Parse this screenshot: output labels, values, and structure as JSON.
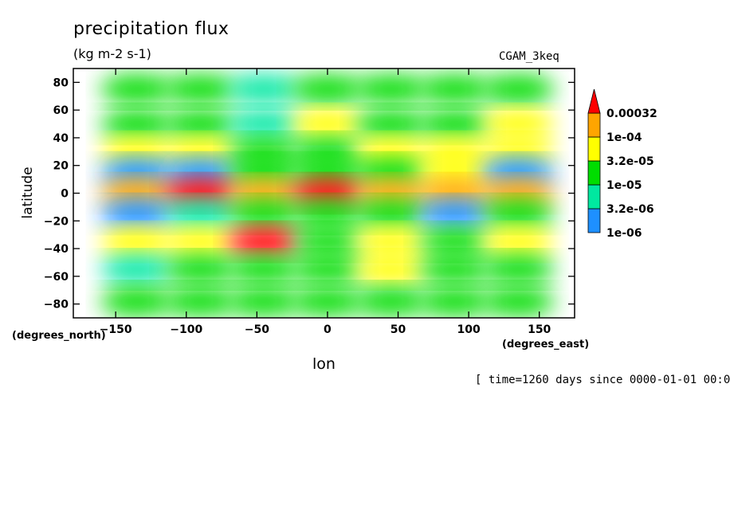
{
  "header": {
    "title": "precipitation flux",
    "units": "(kg m-2 s-1)",
    "run_label": "CGAM_3keq"
  },
  "footer": {
    "time_info": "[ time=1260 days since 0000-01-01 00:0"
  },
  "chart_data": {
    "type": "heatmap",
    "title": "precipitation flux",
    "subtitle": "(kg m-2 s-1)",
    "xlabel": "lon",
    "ylabel": "latitude",
    "x_units": "(degrees_east)",
    "y_units": "(degrees_north)",
    "xlim": [
      -180,
      175
    ],
    "ylim": [
      -90,
      90
    ],
    "x_ticks": [
      -150,
      -100,
      -50,
      0,
      50,
      100,
      150
    ],
    "y_ticks": [
      80,
      60,
      40,
      20,
      0,
      -20,
      -40,
      -60,
      -80
    ],
    "grid": false,
    "legend_position": "right",
    "colorbar": {
      "levels": [
        "1e-06",
        "3.2e-06",
        "1e-05",
        "3.2e-05",
        "1e-04",
        "0.00032"
      ],
      "colors": [
        "#1e90ff",
        "#00e8a0",
        "#00dd00",
        "#ffff00",
        "#ffa500",
        "#ff0000"
      ]
    },
    "cells": [
      {
        "lon": -135,
        "lat": 75,
        "level": 2
      },
      {
        "lon": -90,
        "lat": 75,
        "level": 2
      },
      {
        "lon": -45,
        "lat": 75,
        "level": 1
      },
      {
        "lon": 0,
        "lat": 75,
        "level": 2
      },
      {
        "lon": 45,
        "lat": 75,
        "level": 2
      },
      {
        "lon": 90,
        "lat": 75,
        "level": 2
      },
      {
        "lon": 135,
        "lat": 75,
        "level": 2
      },
      {
        "lon": -135,
        "lat": 50,
        "level": 2
      },
      {
        "lon": -90,
        "lat": 50,
        "level": 2
      },
      {
        "lon": -45,
        "lat": 50,
        "level": 1
      },
      {
        "lon": 0,
        "lat": 50,
        "level": 3
      },
      {
        "lon": 45,
        "lat": 50,
        "level": 2
      },
      {
        "lon": 90,
        "lat": 50,
        "level": 2
      },
      {
        "lon": 135,
        "lat": 50,
        "level": 3
      },
      {
        "lon": -135,
        "lat": 30,
        "level": 3
      },
      {
        "lon": -90,
        "lat": 30,
        "level": 3
      },
      {
        "lon": -45,
        "lat": 30,
        "level": 2
      },
      {
        "lon": 0,
        "lat": 30,
        "level": 2
      },
      {
        "lon": 45,
        "lat": 30,
        "level": 3
      },
      {
        "lon": 90,
        "lat": 30,
        "level": 3
      },
      {
        "lon": 135,
        "lat": 30,
        "level": 3
      },
      {
        "lon": -135,
        "lat": 15,
        "level": 0
      },
      {
        "lon": -90,
        "lat": 15,
        "level": 0
      },
      {
        "lon": -45,
        "lat": 15,
        "level": 2
      },
      {
        "lon": 0,
        "lat": 15,
        "level": 2
      },
      {
        "lon": 45,
        "lat": 15,
        "level": 2
      },
      {
        "lon": 90,
        "lat": 15,
        "level": 3
      },
      {
        "lon": 135,
        "lat": 15,
        "level": 0
      },
      {
        "lon": -135,
        "lat": 0,
        "level": 4
      },
      {
        "lon": -90,
        "lat": 0,
        "level": 5
      },
      {
        "lon": -45,
        "lat": 0,
        "level": 4
      },
      {
        "lon": 0,
        "lat": 0,
        "level": 5
      },
      {
        "lon": 45,
        "lat": 0,
        "level": 4
      },
      {
        "lon": 90,
        "lat": 0,
        "level": 4
      },
      {
        "lon": 135,
        "lat": 0,
        "level": 4
      },
      {
        "lon": -135,
        "lat": -15,
        "level": 0
      },
      {
        "lon": -90,
        "lat": -15,
        "level": 1
      },
      {
        "lon": -45,
        "lat": -15,
        "level": 2
      },
      {
        "lon": 0,
        "lat": -15,
        "level": 2
      },
      {
        "lon": 45,
        "lat": -15,
        "level": 2
      },
      {
        "lon": 90,
        "lat": -15,
        "level": 0
      },
      {
        "lon": 135,
        "lat": -15,
        "level": 2
      },
      {
        "lon": -135,
        "lat": -35,
        "level": 3
      },
      {
        "lon": -90,
        "lat": -35,
        "level": 3
      },
      {
        "lon": -45,
        "lat": -35,
        "level": 5
      },
      {
        "lon": 0,
        "lat": -35,
        "level": 2
      },
      {
        "lon": 45,
        "lat": -35,
        "level": 3
      },
      {
        "lon": 90,
        "lat": -35,
        "level": 2
      },
      {
        "lon": 135,
        "lat": -35,
        "level": 3
      },
      {
        "lon": -135,
        "lat": -55,
        "level": 1
      },
      {
        "lon": -90,
        "lat": -55,
        "level": 2
      },
      {
        "lon": -45,
        "lat": -55,
        "level": 2
      },
      {
        "lon": 0,
        "lat": -55,
        "level": 2
      },
      {
        "lon": 45,
        "lat": -55,
        "level": 3
      },
      {
        "lon": 90,
        "lat": -55,
        "level": 2
      },
      {
        "lon": 135,
        "lat": -55,
        "level": 2
      },
      {
        "lon": -135,
        "lat": -78,
        "level": 2
      },
      {
        "lon": -90,
        "lat": -78,
        "level": 2
      },
      {
        "lon": -45,
        "lat": -78,
        "level": 2
      },
      {
        "lon": 0,
        "lat": -78,
        "level": 2
      },
      {
        "lon": 45,
        "lat": -78,
        "level": 2
      },
      {
        "lon": 90,
        "lat": -78,
        "level": 2
      },
      {
        "lon": 135,
        "lat": -78,
        "level": 2
      }
    ]
  }
}
